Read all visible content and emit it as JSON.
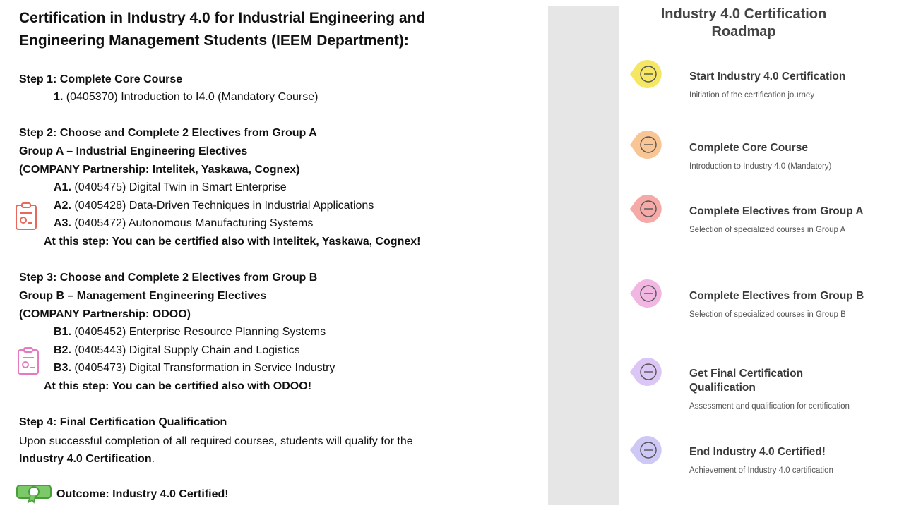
{
  "title": "Certification in Industry 4.0 for Industrial Engineering and Engineering Management Students (IEEM Department):",
  "steps": [
    {
      "heading": "Step 1: Complete Core Course",
      "courses": [
        {
          "code": "1.",
          "text": "(0405370) Introduction to I4.0 (Mandatory Course)"
        }
      ]
    },
    {
      "heading": "Step 2: Choose and Complete 2 Electives from Group A",
      "group": "Group A – Industrial Engineering Electives",
      "partnership": "(COMPANY Partnership: Intelitek, Yaskawa, Cognex)",
      "courses": [
        {
          "code": "A1.",
          "text": "(0405475) Digital Twin in Smart Enterprise"
        },
        {
          "code": "A2.",
          "text": "(0405428) Data-Driven Techniques in Industrial Applications"
        },
        {
          "code": "A3.",
          "text": "(0405472) Autonomous Manufacturing Systems"
        }
      ],
      "note": "At this step: You can be certified also with Intelitek, Yaskawa, Cognex!"
    },
    {
      "heading": "Step 3: Choose and Complete 2 Electives from Group B",
      "group": "Group B – Management Engineering Electives",
      "partnership": "(COMPANY Partnership: ODOO)",
      "courses": [
        {
          "code": "B1.",
          "text": "(0405452) Enterprise Resource Planning Systems"
        },
        {
          "code": "B2.",
          "text": "(0405443) Digital Supply Chain and Logistics"
        },
        {
          "code": "B3.",
          "text": "(0405473) Digital Transformation in Service Industry"
        }
      ],
      "note": "At this step: You can be certified also with ODOO!"
    },
    {
      "heading": "Step 4: Final Certification Qualification",
      "body": "Upon successful completion of all required courses, students will qualify for the ",
      "emphasis": "Industry 4.0 Certification",
      "body_end": "."
    }
  ],
  "outcome": "Outcome: Industry 4.0 Certified!",
  "roadmap": {
    "title": "Industry 4.0 Certification Roadmap",
    "items": [
      {
        "title": "Start Industry 4.0 Certification",
        "description": "Initiation of the certification journey",
        "color": "#f5e663"
      },
      {
        "title": "Complete Core Course",
        "description": "Introduction to Industry 4.0 (Mandatory)",
        "color": "#f8c595"
      },
      {
        "title": "Complete Electives from Group A",
        "description": "Selection of specialized courses in Group A",
        "color": "#f6aaa8"
      },
      {
        "title": "Complete Electives from Group B",
        "description": "Selection of specialized courses in Group B",
        "color": "#f2b6e3"
      },
      {
        "title": "Get Final Certification Qualification",
        "description": "Assessment and qualification for certification",
        "color": "#dcc6f6"
      },
      {
        "title": "End Industry 4.0 Certified!",
        "description": "Achievement of Industry 4.0 certification",
        "color": "#cdc8f6"
      }
    ]
  }
}
